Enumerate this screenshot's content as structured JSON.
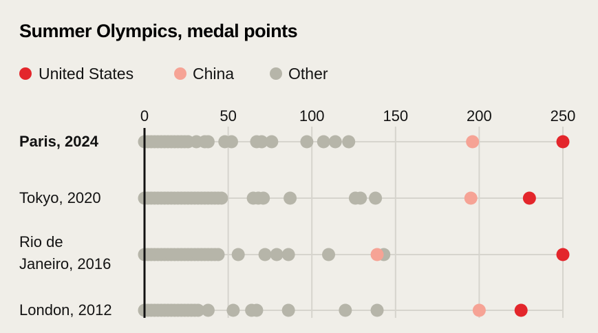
{
  "chart_data": {
    "type": "scatter",
    "title": "Summer Olympics, medal points",
    "xlabel": "",
    "ylabel": "",
    "xlim": [
      0,
      250
    ],
    "x_ticks": [
      "0",
      "50",
      "100",
      "150",
      "200",
      "250"
    ],
    "x_tick_values": [
      0,
      50,
      100,
      150,
      200,
      250
    ],
    "grid": "vertical",
    "legend_position": "top-left",
    "colors": {
      "United States": "#e3262b",
      "China": "#f6a395",
      "Other": "#b6b5a9"
    },
    "legend": [
      {
        "name": "United States",
        "color": "#e3262b"
      },
      {
        "name": "China",
        "color": "#f6a395"
      },
      {
        "name": "Other",
        "color": "#b6b5a9"
      }
    ],
    "rows": [
      {
        "label_lines": [
          "Paris, 2024"
        ],
        "highlight": true,
        "united_states": 250,
        "china": 196,
        "other": [
          0,
          2,
          4,
          6,
          8,
          10,
          12,
          14,
          16,
          18,
          20,
          22,
          24,
          26,
          31,
          36,
          38,
          48,
          52,
          67,
          70,
          76,
          97,
          107,
          114,
          122
        ]
      },
      {
        "label_lines": [
          "Tokyo, 2020"
        ],
        "highlight": false,
        "united_states": 230,
        "china": 195,
        "other": [
          0,
          2,
          4,
          6,
          8,
          10,
          12,
          14,
          16,
          18,
          20,
          22,
          24,
          26,
          28,
          30,
          32,
          34,
          36,
          38,
          40,
          42,
          44,
          46,
          65,
          68,
          71,
          87,
          126,
          129,
          138
        ]
      },
      {
        "label_lines": [
          "Rio de",
          "Janeiro, 2016"
        ],
        "highlight": false,
        "united_states": 250,
        "china": 139,
        "other": [
          0,
          2,
          4,
          6,
          8,
          10,
          12,
          14,
          16,
          18,
          20,
          22,
          24,
          26,
          28,
          30,
          32,
          34,
          36,
          38,
          40,
          42,
          44,
          56,
          72,
          79,
          86,
          110,
          143
        ]
      },
      {
        "label_lines": [
          "London, 2012"
        ],
        "highlight": false,
        "united_states": 225,
        "china": 200,
        "other": [
          0,
          2,
          4,
          6,
          8,
          10,
          12,
          14,
          16,
          18,
          20,
          22,
          24,
          26,
          28,
          30,
          32,
          38,
          53,
          64,
          67,
          86,
          120,
          139
        ]
      }
    ]
  }
}
